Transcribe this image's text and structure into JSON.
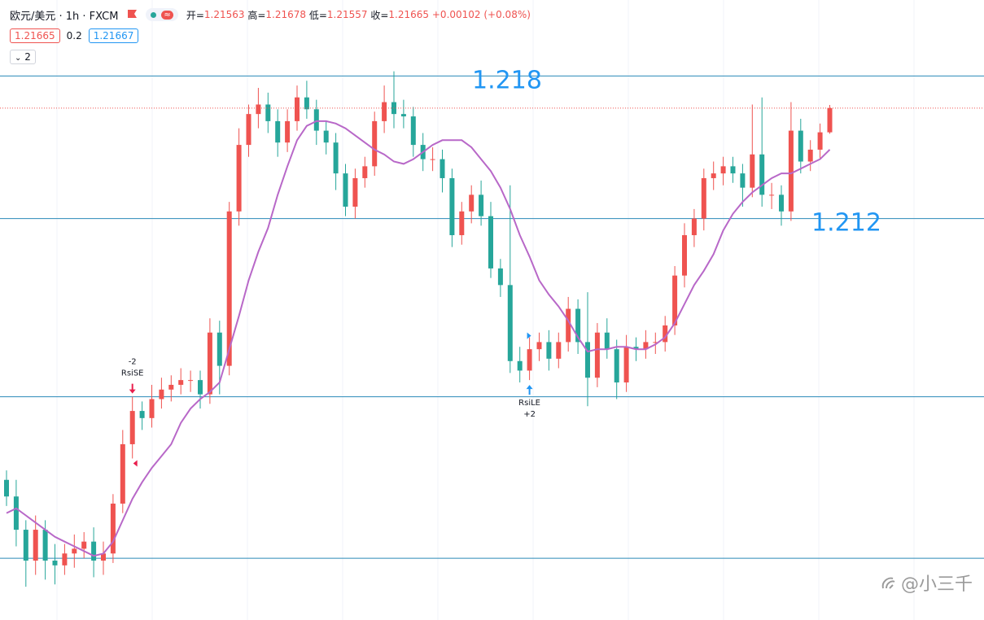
{
  "chart_data": {
    "type": "candlestick",
    "symbol": "欧元/美元 · 1h · FXCM",
    "ohlc_labels": [
      "开=",
      "高=",
      "低=",
      "收="
    ],
    "change": "+0.00102 (+0.08%)",
    "bid": 1.21665,
    "spread": 0.2,
    "ask": 1.21667,
    "indicator_count": 2,
    "watermark": "@小三千",
    "up_color": "#ef5350",
    "down_color": "#26a69a",
    "ma_color": "#b868c8",
    "level_color": "#2a8ab8",
    "ylim": [
      1.1951,
      1.2212
    ],
    "labeled_levels": [
      1.218,
      1.212
    ],
    "levels": [
      1.2045,
      1.1977
    ],
    "open": [
      1.201,
      1.2003,
      1.1989,
      1.1976,
      1.1989,
      1.1976,
      1.1974,
      1.1979,
      1.1981,
      1.1984,
      1.1976,
      1.1979,
      1.2,
      1.2025,
      1.2039,
      1.2036,
      1.2044,
      1.2048,
      1.205,
      1.2052,
      1.2052,
      1.2046,
      1.2072,
      1.2058,
      1.2123,
      1.2151,
      1.2164,
      1.2168,
      1.2161,
      1.2152,
      1.2161,
      1.2171,
      1.2166,
      1.2157,
      1.2152,
      1.2139,
      1.2125,
      1.2137,
      1.2142,
      1.2161,
      1.2169,
      1.2164,
      1.2163,
      1.2151,
      1.2145,
      1.2145,
      1.2137,
      1.2113,
      1.2123,
      1.213,
      1.2121,
      1.2099,
      1.2092,
      1.206,
      1.2056,
      1.2065,
      1.2068,
      1.2061,
      1.2068,
      1.2082,
      1.2068,
      1.2053,
      1.2072,
      1.2065,
      1.2051,
      1.2066,
      1.2065,
      1.2068,
      1.2068,
      1.2075,
      1.2096,
      1.2113,
      1.212,
      1.2137,
      1.2139,
      1.2142,
      1.2139,
      1.2133,
      1.2147,
      1.213,
      1.213,
      1.2123,
      1.2157,
      1.2144,
      1.2149,
      1.21563
    ],
    "high": [
      1.2014,
      1.201,
      1.1993,
      1.1995,
      1.1993,
      1.1983,
      1.1983,
      1.1987,
      1.1988,
      1.199,
      1.1984,
      1.2004,
      1.2031,
      1.2045,
      1.2043,
      1.205,
      1.2053,
      1.2054,
      1.2057,
      1.2056,
      1.2056,
      1.2078,
      1.2077,
      1.2127,
      1.2158,
      1.2168,
      1.2175,
      1.2173,
      1.2166,
      1.2166,
      1.2176,
      1.2178,
      1.217,
      1.2161,
      1.2156,
      1.2143,
      1.2141,
      1.2146,
      1.2165,
      1.2176,
      1.2182,
      1.217,
      1.2167,
      1.2156,
      1.215,
      1.2149,
      1.2141,
      1.2127,
      1.2134,
      1.2136,
      1.2127,
      1.2103,
      1.2134,
      1.2066,
      1.207,
      1.2072,
      1.2073,
      1.2072,
      1.2087,
      1.2086,
      1.2089,
      1.2076,
      1.2078,
      1.2069,
      1.2071,
      1.207,
      1.2073,
      1.2072,
      1.2079,
      1.21,
      1.2118,
      1.2124,
      1.2141,
      1.2144,
      1.2146,
      1.2146,
      1.2143,
      1.2168,
      1.2171,
      1.2135,
      1.2134,
      1.2169,
      1.2162,
      1.2153,
      1.216,
      1.21678
    ],
    "low": [
      1.1999,
      1.1982,
      1.1965,
      1.197,
      1.1968,
      1.1966,
      1.197,
      1.1973,
      1.1977,
      1.1969,
      1.197,
      1.1975,
      1.1996,
      1.2019,
      1.2031,
      1.2032,
      1.204,
      1.2043,
      1.2046,
      1.2047,
      1.204,
      1.2042,
      1.2046,
      1.2054,
      1.2117,
      1.2146,
      1.2158,
      1.2156,
      1.2146,
      1.2148,
      1.2157,
      1.2162,
      1.2151,
      1.2147,
      1.2132,
      1.2121,
      1.212,
      1.2133,
      1.2138,
      1.2156,
      1.2158,
      1.2158,
      1.2146,
      1.214,
      1.214,
      1.2131,
      1.2108,
      1.2109,
      1.2118,
      1.2117,
      1.2095,
      1.2087,
      1.2055,
      1.2051,
      1.2052,
      1.206,
      1.2056,
      1.2057,
      1.2064,
      1.2063,
      1.2041,
      1.2049,
      1.2061,
      1.2044,
      1.2047,
      1.206,
      1.2061,
      1.2063,
      1.2064,
      1.2071,
      1.2091,
      1.2108,
      1.2115,
      1.2132,
      1.2134,
      1.2135,
      1.2125,
      1.2129,
      1.2125,
      1.2124,
      1.2117,
      1.2119,
      1.2139,
      1.214,
      1.2145,
      1.21557
    ],
    "close": [
      1.2003,
      1.1989,
      1.1976,
      1.1989,
      1.1976,
      1.1974,
      1.1979,
      1.1981,
      1.1984,
      1.1976,
      1.1979,
      1.2,
      1.2025,
      1.2039,
      1.2036,
      1.2044,
      1.2048,
      1.205,
      1.2052,
      1.2052,
      1.2046,
      1.2072,
      1.2058,
      1.2123,
      1.2151,
      1.2164,
      1.2168,
      1.2161,
      1.2152,
      1.2161,
      1.2171,
      1.2166,
      1.2157,
      1.2152,
      1.2139,
      1.2125,
      1.2137,
      1.2142,
      1.2161,
      1.2169,
      1.2164,
      1.2163,
      1.2151,
      1.2145,
      1.2145,
      1.2137,
      1.2113,
      1.2123,
      1.213,
      1.2121,
      1.2099,
      1.2092,
      1.206,
      1.2056,
      1.2065,
      1.2068,
      1.2061,
      1.2068,
      1.2082,
      1.2068,
      1.2053,
      1.2072,
      1.2065,
      1.2051,
      1.2066,
      1.2065,
      1.2068,
      1.2068,
      1.2075,
      1.2096,
      1.2113,
      1.212,
      1.2137,
      1.2139,
      1.2142,
      1.2139,
      1.2133,
      1.2147,
      1.213,
      1.213,
      1.2123,
      1.2157,
      1.2144,
      1.2149,
      1.21563,
      1.21665
    ],
    "ma": [
      1.1996,
      1.1998,
      1.1995,
      1.1992,
      1.1989,
      1.1986,
      1.1984,
      1.1982,
      1.198,
      1.1978,
      1.1979,
      1.1984,
      1.1993,
      1.2002,
      1.2009,
      1.2015,
      1.202,
      1.2025,
      1.2034,
      1.204,
      1.2044,
      1.2047,
      1.2051,
      1.2065,
      1.2079,
      1.2094,
      1.2106,
      1.2116,
      1.213,
      1.2142,
      1.2153,
      1.2159,
      1.2161,
      1.2161,
      1.216,
      1.2158,
      1.2155,
      1.2152,
      1.2149,
      1.2147,
      1.2144,
      1.2143,
      1.2145,
      1.2148,
      1.2151,
      1.2153,
      1.2153,
      1.2153,
      1.215,
      1.2145,
      1.214,
      1.2133,
      1.2124,
      1.2113,
      1.2104,
      1.2094,
      1.2088,
      1.2083,
      1.2077,
      1.207,
      1.2064,
      1.2065,
      1.2065,
      1.2066,
      1.2066,
      1.2065,
      1.2065,
      1.2067,
      1.207,
      1.2076,
      1.2084,
      1.2092,
      1.2098,
      1.2105,
      1.2115,
      1.2122,
      1.2127,
      1.2131,
      1.2134,
      1.2137,
      1.2139,
      1.2139,
      1.2141,
      1.2143,
      1.2145,
      1.2149
    ],
    "signals": [
      {
        "name": "RsiSE",
        "qty": "-2",
        "index": 13,
        "side": "short",
        "color": "#e91e4d"
      },
      {
        "name": "RsiLE",
        "qty": "+2",
        "index": 54,
        "side": "long",
        "color": "#2196f3"
      }
    ]
  }
}
